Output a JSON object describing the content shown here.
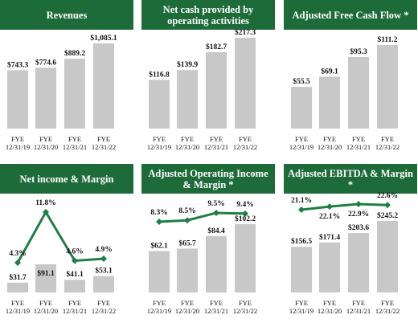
{
  "colors": {
    "header_bg": "#1e6b3a",
    "header_text": "#ffffff",
    "bar": "#c8c8c8",
    "line": "#1e7f45",
    "text": "#111111"
  },
  "chart_data": [
    {
      "type": "bar",
      "title": "Revenues",
      "categories": [
        "FYE 12/31/19",
        "FYE 12/31/20",
        "FYE 12/31/21",
        "FYE 12/31/22"
      ],
      "values": [
        743.3,
        774.6,
        889.2,
        1085.1
      ],
      "value_labels": [
        "$743.3",
        "$774.6",
        "$889.2",
        "$1,085.1"
      ]
    },
    {
      "type": "bar",
      "title": "Net cash provided by operating activities",
      "categories": [
        "FYE 12/31/19",
        "FYE 12/31/20",
        "FYE 12/31/21",
        "FYE 12/31/22"
      ],
      "values": [
        116.8,
        139.9,
        182.7,
        217.3
      ],
      "value_labels": [
        "$116.8",
        "$139.9",
        "$182.7",
        "$217.3"
      ]
    },
    {
      "type": "bar",
      "title": "Adjusted Free Cash Flow *",
      "categories": [
        "FYE 12/31/19",
        "FYE 12/31/20",
        "FYE 12/31/21",
        "FYE 12/31/22"
      ],
      "values": [
        55.5,
        69.1,
        95.3,
        111.2
      ],
      "value_labels": [
        "$55.5",
        "$69.1",
        "$95.3",
        "$111.2"
      ]
    },
    {
      "type": "bar",
      "title": "Net income & Margin",
      "categories": [
        "FYE 12/31/19",
        "FYE 12/31/20",
        "FYE 12/31/21",
        "FYE 12/31/22"
      ],
      "values": [
        31.7,
        91.1,
        41.1,
        53.1
      ],
      "value_labels": [
        "$31.7",
        "$91.1",
        "$41.1",
        "$53.1"
      ],
      "margin": [
        4.3,
        11.8,
        4.6,
        4.9
      ],
      "margin_labels": [
        "4.3%",
        "11.8%",
        "4.6%",
        "4.9%"
      ]
    },
    {
      "type": "bar",
      "title": "Adjusted Operating Income & Margin *",
      "categories": [
        "FYE 12/31/19",
        "FYE 12/31/20",
        "FYE 12/31/21",
        "FYE 12/31/22"
      ],
      "values": [
        62.1,
        65.7,
        84.4,
        102.2
      ],
      "value_labels": [
        "$62.1",
        "$65.7",
        "$84.4",
        "$102.2"
      ],
      "margin": [
        8.3,
        8.5,
        9.5,
        9.4
      ],
      "margin_labels": [
        "8.3%",
        "8.5%",
        "9.5%",
        "9.4%"
      ]
    },
    {
      "type": "bar",
      "title": "Adjusted EBITDA & Margin *",
      "categories": [
        "FYE 12/31/19",
        "FYE 12/31/20",
        "FYE 12/31/21",
        "FYE 12/31/22"
      ],
      "values": [
        156.5,
        171.4,
        203.6,
        245.2
      ],
      "value_labels": [
        "$156.5",
        "$171.4",
        "$203.6",
        "$245.2"
      ],
      "margin": [
        21.1,
        22.1,
        22.9,
        22.6
      ],
      "margin_labels": [
        "21.1%",
        "22.1%",
        "22.9%",
        "22.6%"
      ]
    }
  ]
}
